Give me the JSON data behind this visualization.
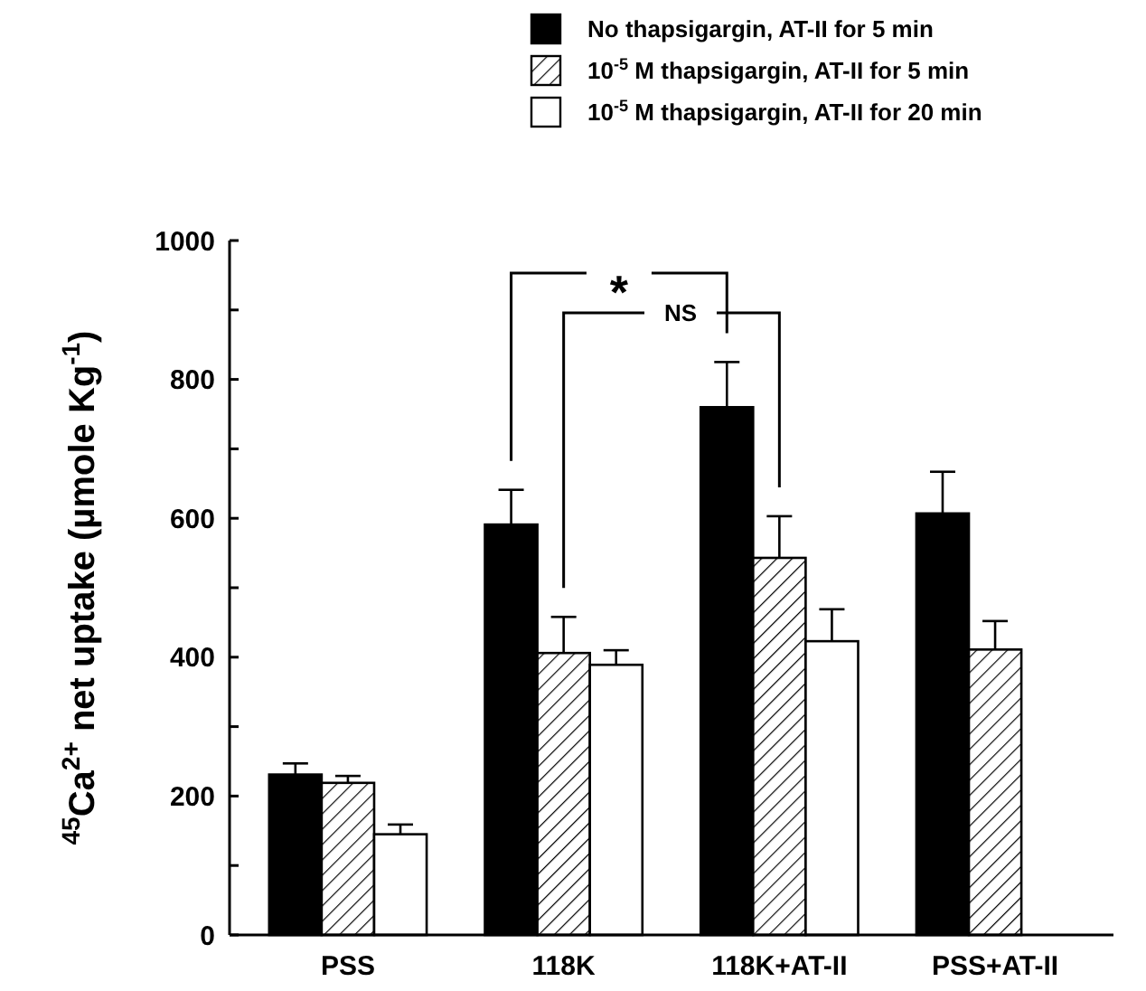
{
  "chart_data": {
    "type": "bar",
    "ylabel": "$^{45}$Ca$^{2+}$ net uptake  (µmole Kg$^{-1}$)",
    "categories": [
      "PSS",
      "118K",
      "118K+AT-II",
      "PSS+AT-II"
    ],
    "series": [
      {
        "name": "No thapsigargin, AT-II for 5 min",
        "color": "#000000",
        "values": [
          231,
          591,
          760,
          607
        ],
        "errors": [
          16,
          50,
          65,
          60
        ]
      },
      {
        "name": "10$^{-5}$ M thapsigargin, AT-II for 5 min",
        "color": "#000000",
        "values": [
          219,
          406,
          543,
          411
        ],
        "errors": [
          10,
          52,
          60,
          41
        ]
      },
      {
        "name": "10$^{-5}$ M thapsigargin, AT-II  for 20 min",
        "color": "#ffffff",
        "values": [
          145,
          389,
          423,
          null
        ],
        "errors": [
          14,
          21,
          46,
          null
        ]
      }
    ],
    "ylim": [
      0,
      1000
    ],
    "yticks": [
      0,
      {
        "value": 100,
        "label": null
      },
      200,
      {
        "value": 300,
        "label": null
      },
      400,
      {
        "value": 500,
        "label": null
      },
      600,
      {
        "value": 700,
        "label": null
      },
      800,
      {
        "value": 900,
        "label": null
      },
      1000
    ],
    "annotations": [
      "*",
      "NS"
    ],
    "legend": "top right",
    "grid": false
  }
}
